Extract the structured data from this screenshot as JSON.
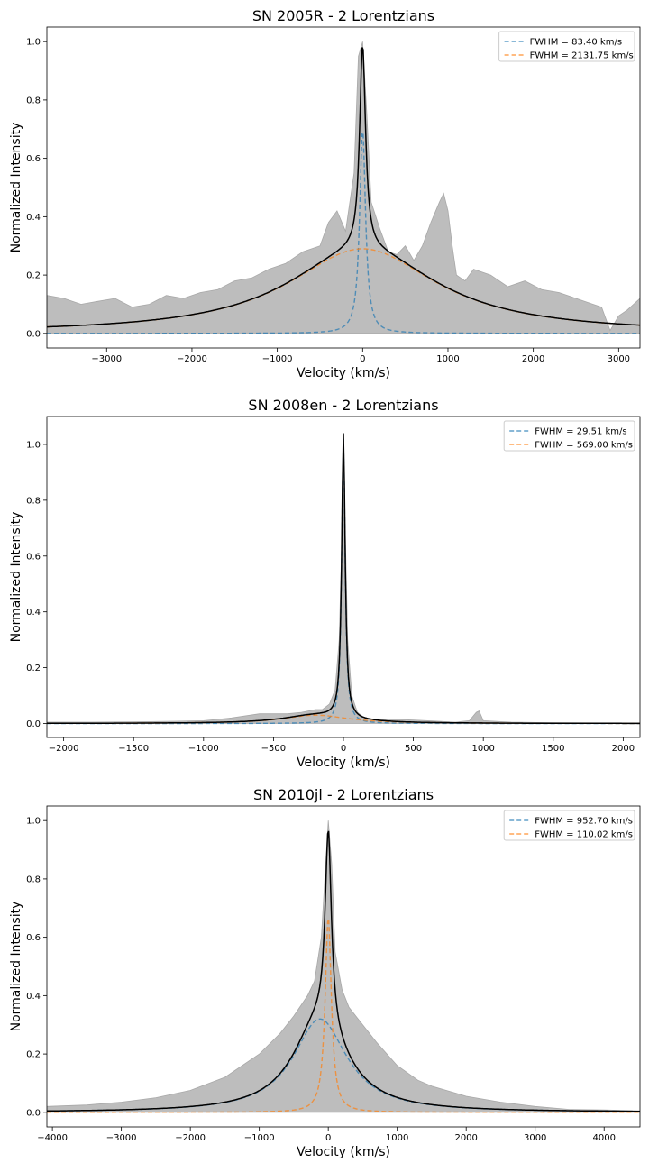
{
  "chart_data": [
    {
      "type": "line",
      "title": "SN 2005R - 2 Lorentzians",
      "xlabel": "Velocity (km/s)",
      "ylabel": "Normalized Intensity",
      "xlim": [
        -3700,
        3250
      ],
      "ylim": [
        -0.05,
        1.05
      ],
      "xticks": [
        -3000,
        -2000,
        -1000,
        0,
        1000,
        2000,
        3000
      ],
      "yticks": [
        0.0,
        0.2,
        0.4,
        0.6,
        0.8,
        1.0
      ],
      "xtick_labels": [
        "−3000",
        "−2000",
        "−1000",
        "0",
        "1000",
        "2000",
        "3000"
      ],
      "ytick_labels": [
        "0.0",
        "0.2",
        "0.4",
        "0.6",
        "0.8",
        "1.0"
      ],
      "grid": false,
      "legend_position": "top-right",
      "observed": {
        "x": [
          -3700,
          -3500,
          -3300,
          -3100,
          -2900,
          -2700,
          -2500,
          -2300,
          -2100,
          -1900,
          -1700,
          -1500,
          -1300,
          -1100,
          -900,
          -700,
          -500,
          -400,
          -300,
          -200,
          -100,
          -50,
          0,
          50,
          100,
          200,
          300,
          400,
          500,
          600,
          700,
          800,
          900,
          950,
          1000,
          1050,
          1100,
          1200,
          1300,
          1500,
          1700,
          1900,
          2100,
          2300,
          2500,
          2700,
          2800,
          2900,
          3000,
          3100,
          3250
        ],
        "y": [
          0.13,
          0.12,
          0.1,
          0.11,
          0.12,
          0.09,
          0.1,
          0.13,
          0.12,
          0.14,
          0.15,
          0.18,
          0.19,
          0.22,
          0.24,
          0.28,
          0.3,
          0.38,
          0.42,
          0.35,
          0.55,
          0.95,
          1.0,
          0.75,
          0.45,
          0.36,
          0.28,
          0.27,
          0.3,
          0.25,
          0.3,
          0.38,
          0.45,
          0.48,
          0.42,
          0.3,
          0.2,
          0.18,
          0.22,
          0.2,
          0.16,
          0.18,
          0.15,
          0.14,
          0.12,
          0.1,
          0.09,
          0.01,
          0.06,
          0.08,
          0.12
        ]
      },
      "series": [
        {
          "name": "FWHM = 83.40 km/s",
          "color": "#1f77b4",
          "dash": true,
          "amp": 0.7,
          "center": 0,
          "fwhm": 83.4
        },
        {
          "name": "FWHM = 2131.75 km/s",
          "color": "#ff7f0e",
          "dash": true,
          "amp": 0.29,
          "center": 0,
          "fwhm": 2131.75
        }
      ]
    },
    {
      "type": "line",
      "title": "SN 2008en - 2 Lorentzians",
      "xlabel": "Velocity (km/s)",
      "ylabel": "Normalized Intensity",
      "xlim": [
        -2120,
        2120
      ],
      "ylim": [
        -0.05,
        1.1
      ],
      "xticks": [
        -2000,
        -1500,
        -1000,
        -500,
        0,
        500,
        1000,
        1500,
        2000
      ],
      "yticks": [
        0.0,
        0.2,
        0.4,
        0.6,
        0.8,
        1.0
      ],
      "xtick_labels": [
        "−2000",
        "−1500",
        "−1000",
        "−500",
        "0",
        "500",
        "1000",
        "1500",
        "2000"
      ],
      "ytick_labels": [
        "0.0",
        "0.2",
        "0.4",
        "0.6",
        "0.8",
        "1.0"
      ],
      "grid": false,
      "legend_position": "top-right",
      "observed": {
        "x": [
          -2120,
          -1800,
          -1500,
          -1200,
          -1000,
          -800,
          -600,
          -400,
          -300,
          -200,
          -150,
          -100,
          -60,
          -30,
          -15,
          0,
          15,
          30,
          60,
          100,
          150,
          200,
          300,
          400,
          600,
          800,
          900,
          950,
          970,
          1000,
          1200,
          1500,
          1800,
          2120
        ],
        "y": [
          0.005,
          0.005,
          0.006,
          0.008,
          0.01,
          0.02,
          0.035,
          0.035,
          0.04,
          0.05,
          0.05,
          0.07,
          0.12,
          0.3,
          0.6,
          0.98,
          0.65,
          0.3,
          0.1,
          0.04,
          0.02,
          0.01,
          0.015,
          0.015,
          0.01,
          0.005,
          0.01,
          0.04,
          0.045,
          0.01,
          0.005,
          0.003,
          0.002,
          0.002
        ]
      },
      "series": [
        {
          "name": "FWHM = 29.51 km/s",
          "color": "#1f77b4",
          "dash": true,
          "amp": 1.02,
          "center": 0,
          "fwhm": 29.51
        },
        {
          "name": "FWHM = 569.00 km/s",
          "color": "#ff7f0e",
          "dash": true,
          "amp": 0.03,
          "center": -200,
          "fwhm": 569.0
        }
      ]
    },
    {
      "type": "line",
      "title": "SN 2010jl - 2 Lorentzians",
      "xlabel": "Velocity (km/s)",
      "ylabel": "Normalized Intensity",
      "xlim": [
        -4080,
        4520
      ],
      "ylim": [
        -0.05,
        1.05
      ],
      "xticks": [
        -4000,
        -3000,
        -2000,
        -1000,
        0,
        1000,
        2000,
        3000,
        4000
      ],
      "yticks": [
        0.0,
        0.2,
        0.4,
        0.6,
        0.8,
        1.0
      ],
      "xtick_labels": [
        "−4000",
        "−3000",
        "−2000",
        "−1000",
        "0",
        "1000",
        "2000",
        "3000",
        "4000"
      ],
      "ytick_labels": [
        "0.0",
        "0.2",
        "0.4",
        "0.6",
        "0.8",
        "1.0"
      ],
      "grid": false,
      "legend_position": "top-right",
      "observed": {
        "x": [
          -4080,
          -3500,
          -3000,
          -2500,
          -2000,
          -1500,
          -1000,
          -700,
          -500,
          -300,
          -200,
          -100,
          -50,
          0,
          50,
          100,
          200,
          300,
          500,
          700,
          1000,
          1300,
          1500,
          2000,
          2500,
          3000,
          3500,
          4000,
          4520
        ],
        "y": [
          0.02,
          0.025,
          0.035,
          0.05,
          0.075,
          0.12,
          0.2,
          0.27,
          0.33,
          0.4,
          0.45,
          0.6,
          0.8,
          1.0,
          0.85,
          0.55,
          0.42,
          0.36,
          0.3,
          0.24,
          0.16,
          0.11,
          0.09,
          0.055,
          0.035,
          0.02,
          0.01,
          0.008,
          0.005
        ]
      },
      "series": [
        {
          "name": "FWHM = 952.70 km/s",
          "color": "#1f77b4",
          "dash": true,
          "amp": 0.32,
          "center": -120,
          "fwhm": 952.7
        },
        {
          "name": "FWHM = 110.02 km/s",
          "color": "#ff7f0e",
          "dash": true,
          "amp": 0.67,
          "center": 0,
          "fwhm": 110.02
        }
      ]
    }
  ]
}
